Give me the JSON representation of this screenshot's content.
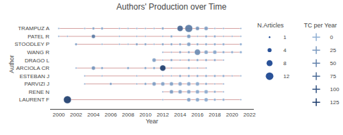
{
  "chart_data": {
    "type": "scatter",
    "title": "Authors' Production over Time",
    "xlabel": "Year",
    "ylabel": "Author",
    "categories": [
      "LAURENT F",
      "RENE N",
      "PARVIZI J",
      "ESTEBAN J",
      "ARCIOLA CR",
      "DRAGO L",
      "WANG R",
      "STOODLEY P",
      "PATEL R",
      "TRAMPUZ A"
    ],
    "xlim": [
      1999,
      2022.5
    ],
    "xticks": [
      2000,
      2002,
      2004,
      2006,
      2008,
      2010,
      2012,
      2014,
      2016,
      2018,
      2020,
      2022
    ],
    "grid": false,
    "range_color": "#d4a0a0",
    "color_scale": [
      "#8fafd4",
      "#1a3a6b"
    ],
    "color_range": [
      0,
      125
    ],
    "size_legend": {
      "title": "N.Articles",
      "values": [
        1,
        4,
        8,
        12
      ],
      "color": "#2a5298"
    },
    "color_legend": {
      "title": "TC per Year",
      "values": [
        0,
        25,
        50,
        75,
        100,
        125
      ],
      "marker": "cross"
    },
    "ranges": [
      {
        "author": "TRAMPUZ A",
        "start": 2000,
        "end": 2021
      },
      {
        "author": "PATEL R",
        "start": 2000,
        "end": 2021
      },
      {
        "author": "STOODLEY P",
        "start": 2002,
        "end": 2021
      },
      {
        "author": "WANG R",
        "start": 2012,
        "end": 2021
      },
      {
        "author": "DRAGO L",
        "start": 2011,
        "end": 2019
      },
      {
        "author": "ARCIOLA CR",
        "start": 2002,
        "end": 2017
      },
      {
        "author": "ESTEBAN J",
        "start": 2003,
        "end": 2021
      },
      {
        "author": "PARVIZI J",
        "start": 2003,
        "end": 2019
      },
      {
        "author": "RENE N",
        "start": 2012,
        "end": 2019
      },
      {
        "author": "LAURENT F",
        "start": 2001,
        "end": 2021
      }
    ],
    "points": [
      {
        "author": "TRAMPUZ A",
        "year": 2000,
        "n": 1,
        "tc": 2
      },
      {
        "author": "TRAMPUZ A",
        "year": 2003,
        "n": 1,
        "tc": 5
      },
      {
        "author": "TRAMPUZ A",
        "year": 2004,
        "n": 2,
        "tc": 15
      },
      {
        "author": "TRAMPUZ A",
        "year": 2005,
        "n": 2,
        "tc": 10
      },
      {
        "author": "TRAMPUZ A",
        "year": 2007,
        "n": 1,
        "tc": 5
      },
      {
        "author": "TRAMPUZ A",
        "year": 2008,
        "n": 1,
        "tc": 5
      },
      {
        "author": "TRAMPUZ A",
        "year": 2009,
        "n": 1,
        "tc": 5
      },
      {
        "author": "TRAMPUZ A",
        "year": 2010,
        "n": 1,
        "tc": 5
      },
      {
        "author": "TRAMPUZ A",
        "year": 2011,
        "n": 1,
        "tc": 5
      },
      {
        "author": "TRAMPUZ A",
        "year": 2012,
        "n": 2,
        "tc": 10
      },
      {
        "author": "TRAMPUZ A",
        "year": 2014,
        "n": 8,
        "tc": 80
      },
      {
        "author": "TRAMPUZ A",
        "year": 2015,
        "n": 12,
        "tc": 60
      },
      {
        "author": "TRAMPUZ A",
        "year": 2016,
        "n": 4,
        "tc": 30
      },
      {
        "author": "TRAMPUZ A",
        "year": 2017,
        "n": 4,
        "tc": 20
      },
      {
        "author": "TRAMPUZ A",
        "year": 2018,
        "n": 1,
        "tc": 5
      },
      {
        "author": "TRAMPUZ A",
        "year": 2019,
        "n": 1,
        "tc": 5
      },
      {
        "author": "TRAMPUZ A",
        "year": 2021,
        "n": 1,
        "tc": 3
      },
      {
        "author": "PATEL R",
        "year": 2000,
        "n": 1,
        "tc": 5
      },
      {
        "author": "PATEL R",
        "year": 2001,
        "n": 1,
        "tc": 5
      },
      {
        "author": "PATEL R",
        "year": 2004,
        "n": 4,
        "tc": 60
      },
      {
        "author": "PATEL R",
        "year": 2007,
        "n": 1,
        "tc": 5
      },
      {
        "author": "PATEL R",
        "year": 2009,
        "n": 1,
        "tc": 5
      },
      {
        "author": "PATEL R",
        "year": 2010,
        "n": 1,
        "tc": 5
      },
      {
        "author": "PATEL R",
        "year": 2012,
        "n": 1,
        "tc": 5
      },
      {
        "author": "PATEL R",
        "year": 2013,
        "n": 2,
        "tc": 10
      },
      {
        "author": "PATEL R",
        "year": 2015,
        "n": 4,
        "tc": 20
      },
      {
        "author": "PATEL R",
        "year": 2016,
        "n": 1,
        "tc": 5
      },
      {
        "author": "PATEL R",
        "year": 2017,
        "n": 2,
        "tc": 5
      },
      {
        "author": "PATEL R",
        "year": 2018,
        "n": 2,
        "tc": 5
      },
      {
        "author": "PATEL R",
        "year": 2019,
        "n": 1,
        "tc": 3
      },
      {
        "author": "PATEL R",
        "year": 2020,
        "n": 1,
        "tc": 2
      },
      {
        "author": "PATEL R",
        "year": 2021,
        "n": 1,
        "tc": 1
      },
      {
        "author": "STOODLEY P",
        "year": 2002,
        "n": 2,
        "tc": 15
      },
      {
        "author": "STOODLEY P",
        "year": 2005,
        "n": 1,
        "tc": 5
      },
      {
        "author": "STOODLEY P",
        "year": 2007,
        "n": 1,
        "tc": 5
      },
      {
        "author": "STOODLEY P",
        "year": 2008,
        "n": 1,
        "tc": 5
      },
      {
        "author": "STOODLEY P",
        "year": 2009,
        "n": 2,
        "tc": 15
      },
      {
        "author": "STOODLEY P",
        "year": 2010,
        "n": 2,
        "tc": 10
      },
      {
        "author": "STOODLEY P",
        "year": 2011,
        "n": 1,
        "tc": 5
      },
      {
        "author": "STOODLEY P",
        "year": 2012,
        "n": 2,
        "tc": 10
      },
      {
        "author": "STOODLEY P",
        "year": 2013,
        "n": 2,
        "tc": 10
      },
      {
        "author": "STOODLEY P",
        "year": 2014,
        "n": 2,
        "tc": 8
      },
      {
        "author": "STOODLEY P",
        "year": 2015,
        "n": 4,
        "tc": 15
      },
      {
        "author": "STOODLEY P",
        "year": 2016,
        "n": 2,
        "tc": 8
      },
      {
        "author": "STOODLEY P",
        "year": 2017,
        "n": 2,
        "tc": 5
      },
      {
        "author": "STOODLEY P",
        "year": 2018,
        "n": 2,
        "tc": 5
      },
      {
        "author": "STOODLEY P",
        "year": 2019,
        "n": 2,
        "tc": 3
      },
      {
        "author": "STOODLEY P",
        "year": 2021,
        "n": 2,
        "tc": 1
      },
      {
        "author": "WANG R",
        "year": 2012,
        "n": 1,
        "tc": 5
      },
      {
        "author": "WANG R",
        "year": 2013,
        "n": 1,
        "tc": 5
      },
      {
        "author": "WANG R",
        "year": 2014,
        "n": 2,
        "tc": 10
      },
      {
        "author": "WANG R",
        "year": 2015,
        "n": 2,
        "tc": 10
      },
      {
        "author": "WANG R",
        "year": 2016,
        "n": 8,
        "tc": 40
      },
      {
        "author": "WANG R",
        "year": 2017,
        "n": 4,
        "tc": 15
      },
      {
        "author": "WANG R",
        "year": 2018,
        "n": 4,
        "tc": 10
      },
      {
        "author": "WANG R",
        "year": 2019,
        "n": 2,
        "tc": 5
      },
      {
        "author": "WANG R",
        "year": 2020,
        "n": 2,
        "tc": 3
      },
      {
        "author": "WANG R",
        "year": 2021,
        "n": 2,
        "tc": 1
      },
      {
        "author": "DRAGO L",
        "year": 2011,
        "n": 4,
        "tc": 20
      },
      {
        "author": "DRAGO L",
        "year": 2012,
        "n": 1,
        "tc": 5
      },
      {
        "author": "DRAGO L",
        "year": 2013,
        "n": 2,
        "tc": 10
      },
      {
        "author": "DRAGO L",
        "year": 2014,
        "n": 1,
        "tc": 5
      },
      {
        "author": "DRAGO L",
        "year": 2015,
        "n": 2,
        "tc": 5
      },
      {
        "author": "DRAGO L",
        "year": 2016,
        "n": 2,
        "tc": 5
      },
      {
        "author": "DRAGO L",
        "year": 2017,
        "n": 2,
        "tc": 5
      },
      {
        "author": "DRAGO L",
        "year": 2018,
        "n": 2,
        "tc": 3
      },
      {
        "author": "DRAGO L",
        "year": 2019,
        "n": 1,
        "tc": 1
      },
      {
        "author": "ARCIOLA CR",
        "year": 2002,
        "n": 1,
        "tc": 5
      },
      {
        "author": "ARCIOLA CR",
        "year": 2004,
        "n": 4,
        "tc": 30
      },
      {
        "author": "ARCIOLA CR",
        "year": 2005,
        "n": 2,
        "tc": 10
      },
      {
        "author": "ARCIOLA CR",
        "year": 2008,
        "n": 2,
        "tc": 10
      },
      {
        "author": "ARCIOLA CR",
        "year": 2010,
        "n": 2,
        "tc": 10
      },
      {
        "author": "ARCIOLA CR",
        "year": 2011,
        "n": 2,
        "tc": 10
      },
      {
        "author": "ARCIOLA CR",
        "year": 2012,
        "n": 8,
        "tc": 125
      },
      {
        "author": "ARCIOLA CR",
        "year": 2013,
        "n": 1,
        "tc": 5
      },
      {
        "author": "ARCIOLA CR",
        "year": 2015,
        "n": 2,
        "tc": 5
      },
      {
        "author": "ARCIOLA CR",
        "year": 2016,
        "n": 1,
        "tc": 2
      },
      {
        "author": "ARCIOLA CR",
        "year": 2017,
        "n": 1,
        "tc": 1
      },
      {
        "author": "ESTEBAN J",
        "year": 2003,
        "n": 1,
        "tc": 5
      },
      {
        "author": "ESTEBAN J",
        "year": 2005,
        "n": 1,
        "tc": 5
      },
      {
        "author": "ESTEBAN J",
        "year": 2009,
        "n": 1,
        "tc": 5
      },
      {
        "author": "ESTEBAN J",
        "year": 2012,
        "n": 1,
        "tc": 5
      },
      {
        "author": "ESTEBAN J",
        "year": 2013,
        "n": 1,
        "tc": 5
      },
      {
        "author": "ESTEBAN J",
        "year": 2014,
        "n": 2,
        "tc": 10
      },
      {
        "author": "ESTEBAN J",
        "year": 2015,
        "n": 2,
        "tc": 5
      },
      {
        "author": "ESTEBAN J",
        "year": 2016,
        "n": 2,
        "tc": 5
      },
      {
        "author": "ESTEBAN J",
        "year": 2017,
        "n": 2,
        "tc": 3
      },
      {
        "author": "ESTEBAN J",
        "year": 2018,
        "n": 2,
        "tc": 2
      },
      {
        "author": "ESTEBAN J",
        "year": 2019,
        "n": 2,
        "tc": 1
      },
      {
        "author": "ESTEBAN J",
        "year": 2020,
        "n": 1,
        "tc": 0
      },
      {
        "author": "ESTEBAN J",
        "year": 2021,
        "n": 1,
        "tc": 0
      },
      {
        "author": "PARVIZI J",
        "year": 2003,
        "n": 1,
        "tc": 5
      },
      {
        "author": "PARVIZI J",
        "year": 2006,
        "n": 2,
        "tc": 20
      },
      {
        "author": "PARVIZI J",
        "year": 2009,
        "n": 1,
        "tc": 10
      },
      {
        "author": "PARVIZI J",
        "year": 2010,
        "n": 2,
        "tc": 10
      },
      {
        "author": "PARVIZI J",
        "year": 2011,
        "n": 4,
        "tc": 20
      },
      {
        "author": "PARVIZI J",
        "year": 2012,
        "n": 4,
        "tc": 15
      },
      {
        "author": "PARVIZI J",
        "year": 2013,
        "n": 4,
        "tc": 15
      },
      {
        "author": "PARVIZI J",
        "year": 2014,
        "n": 4,
        "tc": 10
      },
      {
        "author": "PARVIZI J",
        "year": 2015,
        "n": 4,
        "tc": 10
      },
      {
        "author": "PARVIZI J",
        "year": 2016,
        "n": 4,
        "tc": 8
      },
      {
        "author": "PARVIZI J",
        "year": 2017,
        "n": 2,
        "tc": 5
      },
      {
        "author": "PARVIZI J",
        "year": 2018,
        "n": 1,
        "tc": 2
      },
      {
        "author": "PARVIZI J",
        "year": 2019,
        "n": 1,
        "tc": 1
      },
      {
        "author": "RENE N",
        "year": 2012,
        "n": 1,
        "tc": 5
      },
      {
        "author": "RENE N",
        "year": 2013,
        "n": 4,
        "tc": 20
      },
      {
        "author": "RENE N",
        "year": 2014,
        "n": 4,
        "tc": 15
      },
      {
        "author": "RENE N",
        "year": 2015,
        "n": 4,
        "tc": 10
      },
      {
        "author": "RENE N",
        "year": 2016,
        "n": 4,
        "tc": 8
      },
      {
        "author": "RENE N",
        "year": 2017,
        "n": 4,
        "tc": 5
      },
      {
        "author": "RENE N",
        "year": 2018,
        "n": 2,
        "tc": 3
      },
      {
        "author": "RENE N",
        "year": 2019,
        "n": 1,
        "tc": 1
      },
      {
        "author": "LAURENT F",
        "year": 2001,
        "n": 12,
        "tc": 125
      },
      {
        "author": "LAURENT F",
        "year": 2012,
        "n": 1,
        "tc": 5
      },
      {
        "author": "LAURENT F",
        "year": 2015,
        "n": 4,
        "tc": 15
      },
      {
        "author": "LAURENT F",
        "year": 2016,
        "n": 4,
        "tc": 8
      },
      {
        "author": "LAURENT F",
        "year": 2017,
        "n": 4,
        "tc": 5
      },
      {
        "author": "LAURENT F",
        "year": 2018,
        "n": 2,
        "tc": 2
      },
      {
        "author": "LAURENT F",
        "year": 2019,
        "n": 2,
        "tc": 1
      },
      {
        "author": "LAURENT F",
        "year": 2021,
        "n": 1,
        "tc": 0
      }
    ]
  }
}
